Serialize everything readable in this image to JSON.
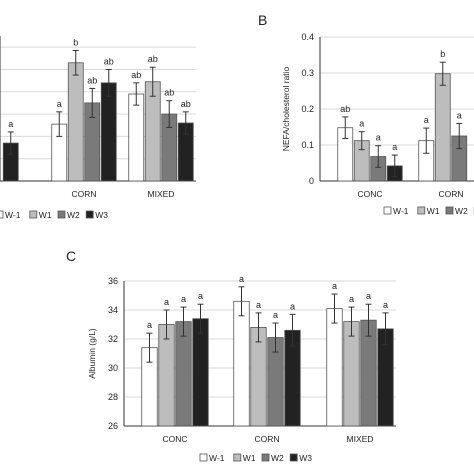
{
  "panels": {
    "A": {
      "label": ""
    },
    "B": {
      "label": "B"
    },
    "C": {
      "label": "C"
    }
  },
  "colors": {
    "W-1": "#ffffff",
    "W1": "#bdbdbd",
    "W2": "#7a7a7a",
    "W3": "#222222",
    "grid": "#d9d9d9",
    "axis": "#333333"
  },
  "chart_data": [
    {
      "type": "bar",
      "panel": "",
      "title": "",
      "ylabel": "",
      "categories": [
        "",
        "CORN",
        "MIXED"
      ],
      "series": [
        {
          "name": "W-1",
          "values": [
            null,
            5.1,
            7.8
          ],
          "errors": [
            null,
            1.1,
            1.0
          ],
          "sig": [
            null,
            "a",
            "ab"
          ]
        },
        {
          "name": "W1",
          "values": [
            null,
            10.6,
            8.9
          ],
          "errors": [
            null,
            1.1,
            1.3
          ],
          "sig": [
            null,
            "b",
            "ab"
          ]
        },
        {
          "name": "W2",
          "values": [
            null,
            7.0,
            6.0
          ],
          "errors": [
            null,
            1.3,
            1.2
          ],
          "sig": [
            null,
            "ab",
            "ab"
          ]
        },
        {
          "name": "W3",
          "values": [
            3.4,
            8.8,
            5.2
          ],
          "errors": [
            1.0,
            1.2,
            1.0
          ],
          "sig": [
            "a",
            "ab",
            "ab"
          ]
        }
      ],
      "ylim": [
        0,
        13
      ]
    },
    {
      "type": "bar",
      "panel": "B",
      "title": "",
      "ylabel": "NEFA/cholesterol ratio",
      "categories": [
        "CONC",
        "CORN"
      ],
      "yticks": [
        "0",
        "0.1",
        "0.2",
        "0.3",
        "0.4"
      ],
      "series": [
        {
          "name": "W-1",
          "values": [
            0.148,
            0.112
          ],
          "errors": [
            0.03,
            0.035
          ],
          "sig": [
            "ab",
            "a"
          ]
        },
        {
          "name": "W1",
          "values": [
            0.112,
            0.298
          ],
          "errors": [
            0.025,
            0.032
          ],
          "sig": [
            "a",
            "b"
          ]
        },
        {
          "name": "W2",
          "values": [
            0.068,
            0.125
          ],
          "errors": [
            0.03,
            0.035
          ],
          "sig": [
            "a",
            "a"
          ]
        },
        {
          "name": "W3",
          "values": [
            0.042,
            null
          ],
          "errors": [
            0.03,
            null
          ],
          "sig": [
            "a",
            null
          ]
        }
      ],
      "ylim": [
        0,
        0.4
      ]
    },
    {
      "type": "bar",
      "panel": "C",
      "title": "",
      "ylabel": "Albumin (g/L)",
      "categories": [
        "CONC",
        "CORN",
        "MIXED"
      ],
      "yticks": [
        "26",
        "28",
        "30",
        "32",
        "34",
        "36"
      ],
      "series": [
        {
          "name": "W-1",
          "values": [
            31.4,
            34.6,
            34.1
          ],
          "errors": [
            1.0,
            1.0,
            1.0
          ],
          "sig": [
            "a",
            "a",
            "a"
          ]
        },
        {
          "name": "W1",
          "values": [
            33.0,
            32.8,
            33.2
          ],
          "errors": [
            1.0,
            1.0,
            1.0
          ],
          "sig": [
            "a",
            "a",
            "a"
          ]
        },
        {
          "name": "W2",
          "values": [
            33.2,
            32.1,
            33.3
          ],
          "errors": [
            1.0,
            1.0,
            1.1
          ],
          "sig": [
            "a",
            "a",
            "a"
          ]
        },
        {
          "name": "W3",
          "values": [
            33.4,
            32.6,
            32.7
          ],
          "errors": [
            1.0,
            1.1,
            1.1
          ],
          "sig": [
            "a",
            "a",
            "a"
          ]
        }
      ],
      "ylim": [
        26,
        36
      ]
    }
  ]
}
